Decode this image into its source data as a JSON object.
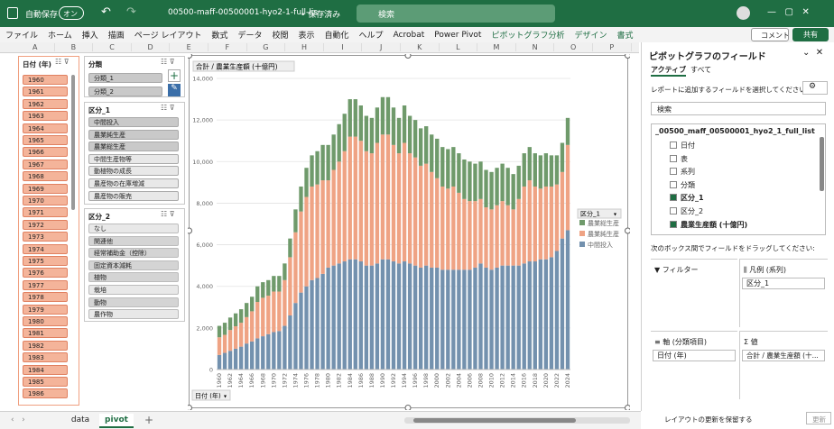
{
  "title_bar": {
    "autosave": "自動保存",
    "toggle": "オン",
    "filename": "00500-maff-00500001-hyo2-1-full-lis···",
    "status": "• 保存済み",
    "search": "検索"
  },
  "ribbon": {
    "tabs": [
      "ファイル",
      "ホーム",
      "挿入",
      "描画",
      "ページ レイアウト",
      "数式",
      "データ",
      "校閲",
      "表示",
      "自動化",
      "ヘルプ",
      "Acrobat",
      "Power Pivot",
      "ピボットグラフ分析",
      "デザイン",
      "書式"
    ],
    "comment": "コメント",
    "share": "共有"
  },
  "columns": [
    "A",
    "B",
    "C",
    "D",
    "E",
    "F",
    "G",
    "H",
    "I",
    "J",
    "K",
    "L",
    "M",
    "N",
    "O",
    "P"
  ],
  "slicers": [
    {
      "title": "日付 (年)",
      "items": [
        "1960",
        "1961",
        "1962",
        "1963",
        "1964",
        "1965",
        "1966",
        "1967",
        "1968",
        "1969",
        "1970",
        "1971",
        "1972",
        "1973",
        "1974",
        "1975",
        "1976",
        "1977",
        "1978",
        "1979",
        "1980",
        "1981",
        "1982",
        "1983",
        "1984",
        "1985",
        "1986"
      ]
    },
    {
      "title": "分類",
      "items": [
        "分類_1",
        "分類_2"
      ]
    },
    {
      "title": "区分_1",
      "items": [
        "中間投入",
        "農業純生産",
        "農業総生産",
        "中間生産物等",
        "動植物の成長",
        "農産物の在庫増減",
        "農産物の販売"
      ]
    },
    {
      "title": "区分_2",
      "items": [
        "なし",
        "関連他",
        "経常補助金（控除）",
        "固定資本減耗",
        "植物",
        "栽培",
        "動物",
        "農作物"
      ]
    }
  ],
  "chart_data": {
    "type": "bar",
    "stacked": true,
    "title": "合計 / 農業生産額 (十億円)",
    "legend_title": "区分_1",
    "axis_button": "日付 (年)",
    "legend": "right",
    "grid": true,
    "categories": [
      "1960",
      null,
      "1962",
      null,
      "1964",
      null,
      "1966",
      null,
      "1968",
      null,
      "1970",
      null,
      "1972",
      null,
      "1974",
      null,
      "1976",
      null,
      "1978",
      null,
      "1980",
      null,
      "1982",
      null,
      "1984",
      null,
      "1986",
      null,
      "1988",
      null,
      "1990",
      null,
      "1992",
      null,
      "1994",
      null,
      "1996",
      null,
      "1998",
      null,
      "2000",
      null,
      "2002",
      null,
      "2004",
      null,
      "2006",
      null,
      "2008",
      null,
      "2010",
      null,
      "2012",
      null,
      "2014",
      null,
      "2016",
      null,
      "2018",
      null,
      "2020",
      null,
      "2022",
      null,
      "2024"
    ],
    "series": [
      {
        "name": "農業総生産",
        "color": "#6f9a6b",
        "values": [
          550,
          580,
          600,
          620,
          650,
          680,
          700,
          750,
          750,
          750,
          750,
          750,
          800,
          900,
          1100,
          1200,
          1400,
          1500,
          1600,
          1700,
          1700,
          1700,
          1800,
          1800,
          1800,
          1800,
          1700,
          1700,
          1700,
          1700,
          1800,
          1800,
          1800,
          1700,
          1800,
          1800,
          1800,
          1800,
          1800,
          1800,
          1900,
          1900,
          1900,
          1900,
          1900,
          1900,
          1900,
          1800,
          1800,
          1800,
          1800,
          1800,
          1800,
          1800,
          1700,
          1600,
          1600,
          1600,
          1600,
          1600,
          1600,
          1500,
          1400,
          1400,
          1300
        ]
      },
      {
        "name": "農業純生産",
        "color": "#efa384",
        "values": [
          850,
          870,
          1000,
          1080,
          1150,
          1270,
          1450,
          1750,
          1850,
          1850,
          1950,
          1900,
          2200,
          2800,
          3400,
          3900,
          4300,
          4500,
          4500,
          4500,
          4200,
          4600,
          4900,
          5300,
          5900,
          5900,
          5800,
          5500,
          5400,
          5800,
          6000,
          6000,
          5600,
          5300,
          5700,
          5300,
          5200,
          4900,
          4900,
          4600,
          4300,
          4000,
          3900,
          4000,
          3700,
          3400,
          3300,
          3200,
          3100,
          2900,
          2900,
          3000,
          3100,
          2900,
          2700,
          3200,
          3700,
          3900,
          3600,
          3400,
          3500,
          3400,
          3200,
          3200,
          4100
        ]
      },
      {
        "name": "中間投入",
        "color": "#7391ae",
        "values": [
          700,
          800,
          900,
          1000,
          1100,
          1250,
          1350,
          1500,
          1600,
          1700,
          1800,
          1850,
          2100,
          2600,
          3200,
          3700,
          4000,
          4300,
          4400,
          4600,
          4900,
          5000,
          5100,
          5200,
          5300,
          5300,
          5200,
          5000,
          5000,
          5100,
          5300,
          5300,
          5200,
          5100,
          5200,
          5100,
          5000,
          4900,
          5000,
          4900,
          4900,
          4800,
          4800,
          4800,
          4800,
          4800,
          4800,
          4900,
          5100,
          4900,
          4800,
          4900,
          5000,
          5000,
          5000,
          5000,
          5100,
          5200,
          5200,
          5300,
          5300,
          5400,
          5700,
          6300,
          6700
        ]
      }
    ],
    "ylim": [
      0,
      14000
    ],
    "yticks": [
      0,
      {
        "value": 2000,
        "label": "2,000"
      },
      {
        "value": 4000,
        "label": "4,000"
      },
      {
        "value": 6000,
        "label": "6,000"
      },
      {
        "value": 8000,
        "label": "8,000"
      },
      {
        "value": 10000,
        "label": "10,000"
      },
      {
        "value": 12000,
        "label": "12,000"
      },
      {
        "value": 14000,
        "label": "14,000"
      }
    ]
  },
  "field_pane": {
    "title": "ピボットグラフのフィールド",
    "tabs": [
      "アクティブ",
      "すべて"
    ],
    "prompt": "レポートに追加するフィールドを選択してください:",
    "search": "検索",
    "table": "_00500_maff_00500001_hyo2_1_full_list",
    "fields": [
      {
        "name": "日付",
        "checked": false
      },
      {
        "name": "表",
        "checked": false
      },
      {
        "name": "系列",
        "checked": false
      },
      {
        "name": "分類",
        "checked": false
      },
      {
        "name": "区分_1",
        "checked": true
      },
      {
        "name": "区分_2",
        "checked": false
      },
      {
        "name": "農業生産額 (十億円)",
        "checked": true
      }
    ],
    "drag_prompt": "次のボックス間でフィールドをドラッグしてください:",
    "filter": "フィルター",
    "legend": "凡例 (系列)",
    "legend_item": "区分_1",
    "axis": "軸 (分類項目)",
    "axis_item": "日付 (年)",
    "values": "値",
    "values_item": "合計 / 農業生産額 (十...",
    "defer": "レイアウトの更新を保留する",
    "update": "更新"
  },
  "sheet_tabs": [
    "data",
    "pivot"
  ]
}
